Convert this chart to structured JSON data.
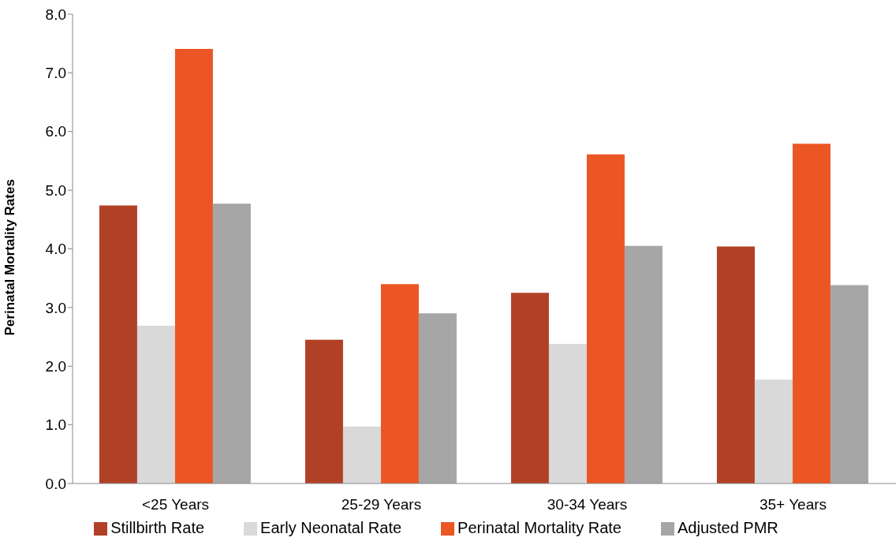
{
  "chart_data": {
    "type": "bar",
    "ylabel": "Perinatal Mortality Rates",
    "categories": [
      "<25 Years",
      "25-29 Years",
      "30-34 Years",
      "35+ Years"
    ],
    "series": [
      {
        "name": "Stillbirth Rate",
        "color": "#b04127",
        "values": [
          4.74,
          2.45,
          3.25,
          4.04
        ]
      },
      {
        "name": "Early Neonatal Rate",
        "color": "#d9d9d9",
        "values": [
          2.69,
          0.97,
          2.38,
          1.77
        ]
      },
      {
        "name": "Perinatal Mortality Rate",
        "color": "#eb5624",
        "values": [
          7.41,
          3.4,
          5.61,
          5.79
        ]
      },
      {
        "name": "Adjusted PMR",
        "color": "#a6a6a6",
        "values": [
          4.77,
          2.9,
          4.05,
          3.38
        ]
      }
    ],
    "ylim": [
      0,
      8
    ],
    "yticks": [
      {
        "value": 0,
        "label": "0.0"
      },
      {
        "value": 1,
        "label": "1.0"
      },
      {
        "value": 2,
        "label": "2.0"
      },
      {
        "value": 3,
        "label": "3.0"
      },
      {
        "value": 4,
        "label": "4.0"
      },
      {
        "value": 5,
        "label": "5.0"
      },
      {
        "value": 6,
        "label": "6.0"
      },
      {
        "value": 7,
        "label": "7.0"
      },
      {
        "value": 8,
        "label": "8.0"
      }
    ],
    "legend": "bottom"
  }
}
